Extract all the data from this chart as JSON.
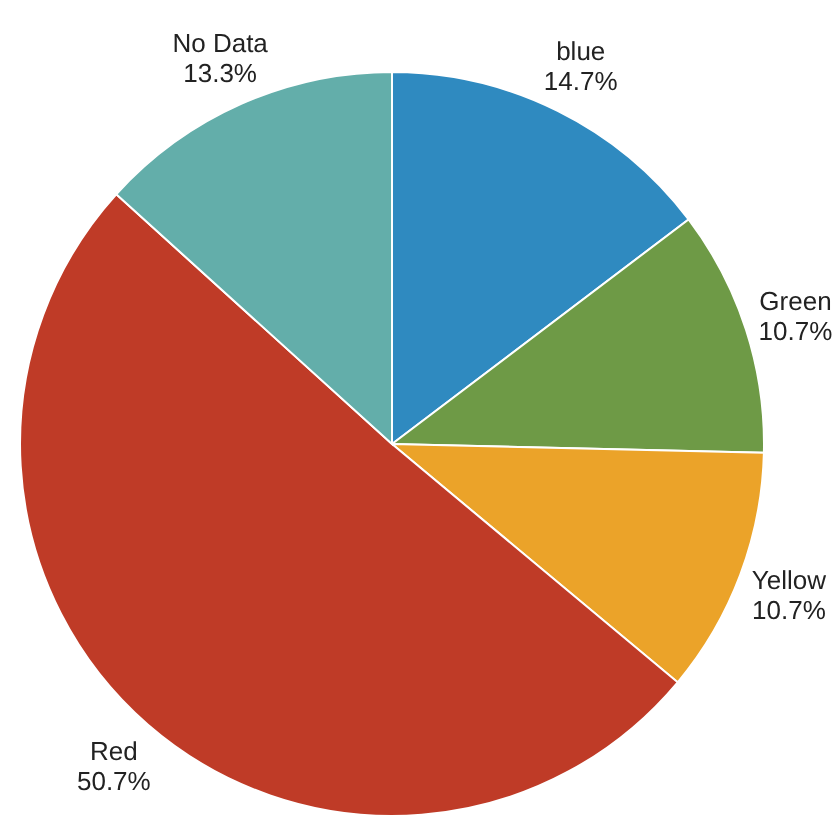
{
  "chart_data": {
    "type": "pie",
    "categories": [
      "blue",
      "Green",
      "Yellow",
      "Red",
      "No Data"
    ],
    "values": [
      14.7,
      10.7,
      10.7,
      50.7,
      13.3
    ],
    "colors": [
      "#2f8ac0",
      "#6e9a46",
      "#eba329",
      "#bf3b27",
      "#63aeaa"
    ],
    "value_labels": [
      "14.7%",
      "10.7%",
      "10.7%",
      "50.7%",
      "13.3%"
    ]
  }
}
